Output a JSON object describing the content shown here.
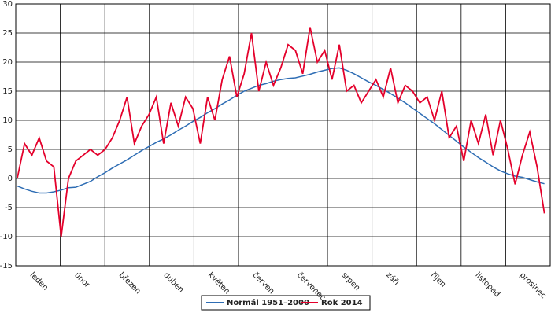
{
  "chart_data": {
    "type": "line",
    "categories": [
      "leden",
      "únor",
      "březen",
      "duben",
      "květen",
      "červen",
      "červenec",
      "srpen",
      "září",
      "říjen",
      "listopad",
      "prosinec"
    ],
    "x": [
      1,
      6,
      11,
      16,
      21,
      26,
      31,
      36,
      41,
      46,
      51,
      56,
      61,
      66,
      71,
      76,
      81,
      86,
      91,
      96,
      101,
      106,
      111,
      116,
      121,
      126,
      131,
      136,
      141,
      146,
      151,
      156,
      161,
      166,
      171,
      176,
      181,
      186,
      191,
      196,
      201,
      206,
      211,
      216,
      221,
      226,
      231,
      236,
      241,
      246,
      251,
      256,
      261,
      266,
      271,
      276,
      281,
      286,
      291,
      296,
      301,
      306,
      311,
      316,
      321,
      326,
      331,
      336,
      341,
      346,
      351,
      356,
      361
    ],
    "xlim": [
      0,
      365
    ],
    "ylim": [
      -15,
      30
    ],
    "yticks": [
      -15,
      -10,
      -5,
      0,
      5,
      10,
      15,
      20,
      25,
      30
    ],
    "grid": true,
    "legend": "bottom",
    "series": [
      {
        "name": "Normál 1951–2000",
        "color": "#2e6db4",
        "values": [
          -1.3,
          -1.8,
          -2.2,
          -2.5,
          -2.5,
          -2.3,
          -2.0,
          -1.6,
          -1.5,
          -1.0,
          -0.5,
          0.3,
          1.0,
          1.8,
          2.5,
          3.2,
          4.0,
          4.8,
          5.5,
          6.2,
          6.8,
          7.5,
          8.3,
          9.0,
          9.8,
          10.5,
          11.3,
          12.0,
          12.8,
          13.5,
          14.3,
          15.0,
          15.5,
          16.0,
          16.3,
          16.7,
          17.0,
          17.2,
          17.3,
          17.6,
          17.9,
          18.3,
          18.6,
          18.9,
          19.0,
          18.6,
          18.0,
          17.3,
          16.6,
          16.0,
          15.3,
          14.6,
          13.8,
          13.0,
          12.1,
          11.2,
          10.3,
          9.4,
          8.4,
          7.4,
          6.4,
          5.4,
          4.5,
          3.6,
          2.8,
          2.0,
          1.3,
          0.8,
          0.4,
          0.2,
          -0.2,
          -0.6,
          -0.9
        ]
      },
      {
        "name": "Rok 2014",
        "color": "#e4002b",
        "values": [
          0,
          6,
          4,
          7,
          3,
          2,
          -10,
          0,
          3,
          4,
          5,
          4,
          5,
          7,
          10,
          14,
          6,
          9,
          11,
          14,
          6,
          13,
          9,
          14,
          12,
          6,
          14,
          10,
          17,
          21,
          14,
          18,
          25,
          15,
          20,
          16,
          19,
          23,
          22,
          18,
          26,
          20,
          22,
          17,
          23,
          15,
          16,
          13,
          15,
          17,
          14,
          19,
          13,
          16,
          15,
          13,
          14,
          10,
          15,
          7,
          9,
          3,
          10,
          6,
          11,
          4,
          10,
          5,
          -1,
          4,
          8,
          2,
          -6
        ]
      }
    ]
  }
}
